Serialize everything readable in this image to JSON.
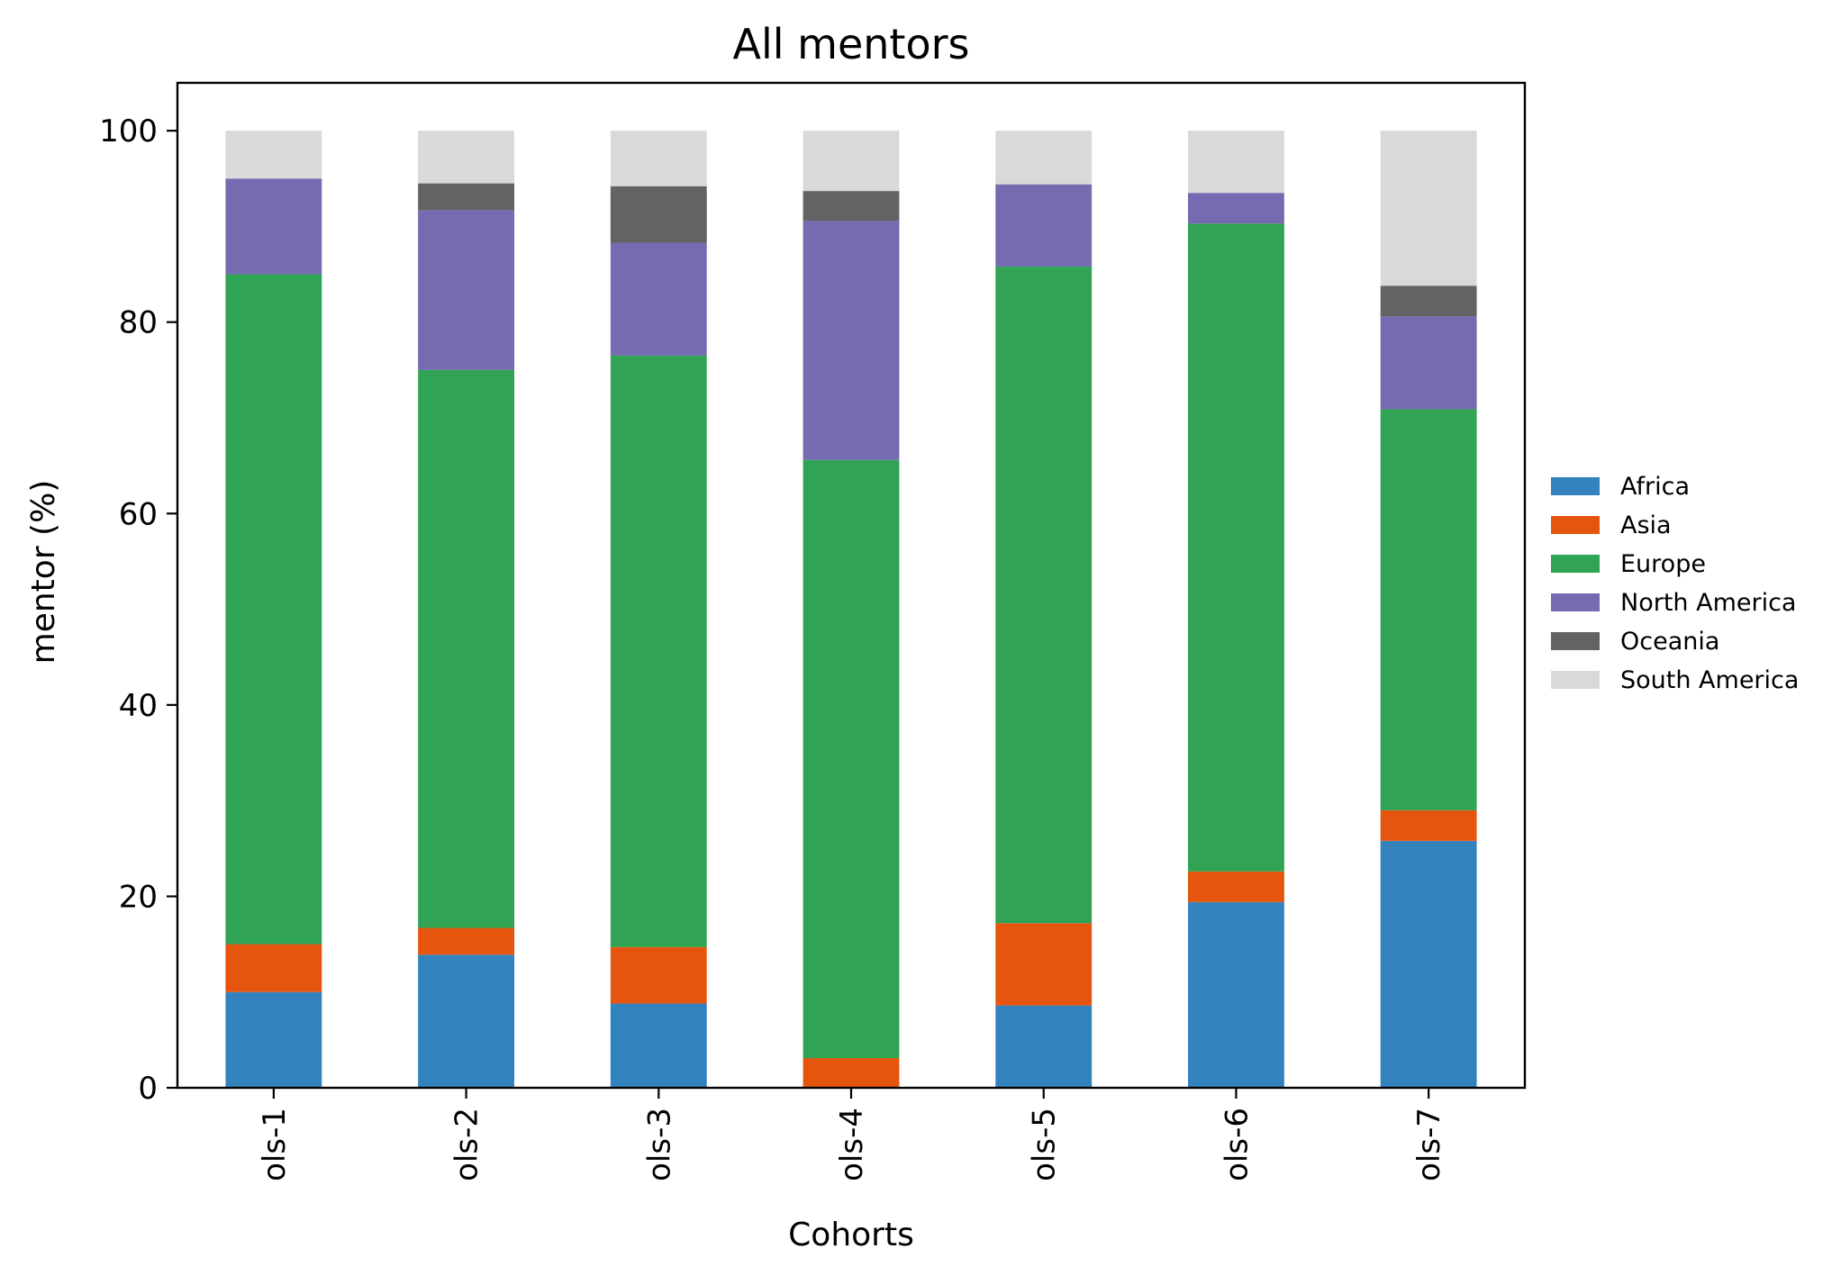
{
  "chart_data": {
    "type": "bar",
    "stacked": true,
    "title": "All mentors",
    "xlabel": "Cohorts",
    "ylabel": "mentor (%)",
    "ylim": [
      0,
      105
    ],
    "yticks": [
      0,
      20,
      40,
      60,
      80,
      100
    ],
    "categories": [
      "ols-1",
      "ols-2",
      "ols-3",
      "ols-4",
      "ols-5",
      "ols-6",
      "ols-7"
    ],
    "legend_position": "right",
    "series": [
      {
        "name": "Africa",
        "color": "#3182bd",
        "values": [
          10.0,
          13.9,
          8.8,
          0.0,
          8.6,
          19.4,
          25.8
        ]
      },
      {
        "name": "Asia",
        "color": "#e6550d",
        "values": [
          5.0,
          2.8,
          5.9,
          3.1,
          8.6,
          3.2,
          3.2
        ]
      },
      {
        "name": "Europe",
        "color": "#31a354",
        "values": [
          70.0,
          58.3,
          61.8,
          62.5,
          68.6,
          67.7,
          41.9
        ]
      },
      {
        "name": "North America",
        "color": "#756bb1",
        "values": [
          10.0,
          16.7,
          11.8,
          25.0,
          8.6,
          3.2,
          9.7
        ]
      },
      {
        "name": "Oceania",
        "color": "#636363",
        "values": [
          0.0,
          2.8,
          5.9,
          3.1,
          0.0,
          0.0,
          3.2
        ]
      },
      {
        "name": "South America",
        "color": "#d9d9d9",
        "values": [
          5.0,
          5.5,
          5.8,
          6.3,
          5.6,
          6.5,
          16.2
        ]
      }
    ]
  }
}
